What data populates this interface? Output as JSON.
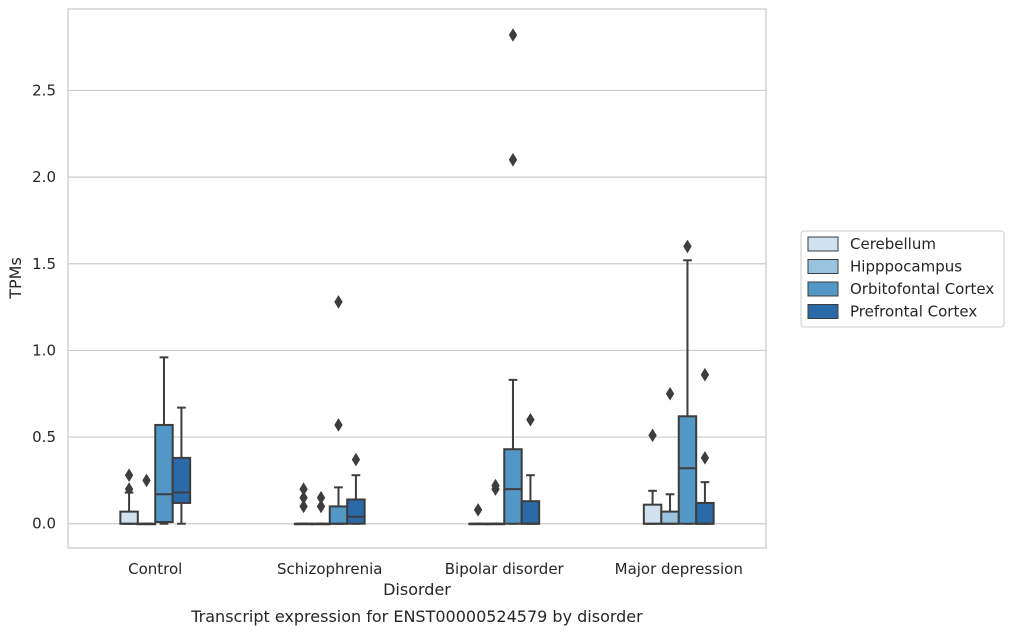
{
  "chart_data": {
    "type": "boxplot",
    "title": "",
    "caption": "Transcript expression for ENST00000524579 by disorder",
    "xlabel": "Disorder",
    "ylabel": "TPMs",
    "ylim": [
      -0.14,
      2.97
    ],
    "yticks": [
      0.0,
      0.5,
      1.0,
      1.5,
      2.0,
      2.5
    ],
    "ytick_labels": [
      "0.0",
      "0.5",
      "1.0",
      "1.5",
      "2.0",
      "2.5"
    ],
    "categories": [
      "Control",
      "Schizophrenia",
      "Bipolar disorder",
      "Major depression"
    ],
    "grid": "horizontal",
    "legend_position": "right",
    "series": [
      {
        "name": "Cerebellum",
        "color": "#d1e1ef",
        "boxes": [
          {
            "q1": 0.0,
            "median": 0.0,
            "q3": 0.07,
            "whisker_low": 0.0,
            "whisker_high": 0.18,
            "outliers": [
              0.2,
              0.28
            ]
          },
          {
            "q1": 0.0,
            "median": 0.0,
            "q3": 0.0,
            "whisker_low": 0.0,
            "whisker_high": 0.0,
            "outliers": [
              0.1,
              0.15,
              0.2
            ]
          },
          {
            "q1": 0.0,
            "median": 0.0,
            "q3": 0.0,
            "whisker_low": 0.0,
            "whisker_high": 0.0,
            "outliers": [
              0.08
            ]
          },
          {
            "q1": 0.0,
            "median": 0.0,
            "q3": 0.11,
            "whisker_low": 0.0,
            "whisker_high": 0.19,
            "outliers": [
              0.51
            ]
          }
        ]
      },
      {
        "name": "Hipppocampus",
        "color": "#99c3de",
        "boxes": [
          {
            "q1": 0.0,
            "median": 0.0,
            "q3": 0.0,
            "whisker_low": 0.0,
            "whisker_high": 0.0,
            "outliers": [
              0.25
            ]
          },
          {
            "q1": 0.0,
            "median": 0.0,
            "q3": 0.0,
            "whisker_low": 0.0,
            "whisker_high": 0.0,
            "outliers": [
              0.1,
              0.15
            ]
          },
          {
            "q1": 0.0,
            "median": 0.0,
            "q3": 0.0,
            "whisker_low": 0.0,
            "whisker_high": 0.0,
            "outliers": [
              0.2,
              0.22
            ]
          },
          {
            "q1": 0.0,
            "median": 0.0,
            "q3": 0.07,
            "whisker_low": 0.0,
            "whisker_high": 0.17,
            "outliers": [
              0.75
            ]
          }
        ]
      },
      {
        "name": "Orbitofontal Cortex",
        "color": "#5297c6",
        "boxes": [
          {
            "q1": 0.01,
            "median": 0.17,
            "q3": 0.57,
            "whisker_low": 0.0,
            "whisker_high": 0.96,
            "outliers": []
          },
          {
            "q1": 0.0,
            "median": 0.0,
            "q3": 0.1,
            "whisker_low": 0.0,
            "whisker_high": 0.21,
            "outliers": [
              0.57,
              1.28
            ]
          },
          {
            "q1": 0.0,
            "median": 0.2,
            "q3": 0.43,
            "whisker_low": 0.0,
            "whisker_high": 0.83,
            "outliers": [
              2.1,
              2.82
            ]
          },
          {
            "q1": 0.0,
            "median": 0.32,
            "q3": 0.62,
            "whisker_low": 0.0,
            "whisker_high": 1.52,
            "outliers": [
              1.6
            ]
          }
        ]
      },
      {
        "name": "Prefrontal Cortex",
        "color": "#2b6aa8",
        "boxes": [
          {
            "q1": 0.12,
            "median": 0.18,
            "q3": 0.38,
            "whisker_low": 0.0,
            "whisker_high": 0.67,
            "outliers": []
          },
          {
            "q1": 0.0,
            "median": 0.04,
            "q3": 0.14,
            "whisker_low": 0.0,
            "whisker_high": 0.28,
            "outliers": [
              0.37
            ]
          },
          {
            "q1": 0.0,
            "median": 0.0,
            "q3": 0.13,
            "whisker_low": 0.0,
            "whisker_high": 0.28,
            "outliers": [
              0.6
            ]
          },
          {
            "q1": 0.0,
            "median": 0.0,
            "q3": 0.12,
            "whisker_low": 0.0,
            "whisker_high": 0.24,
            "outliers": [
              0.38,
              0.86
            ]
          }
        ]
      }
    ]
  }
}
